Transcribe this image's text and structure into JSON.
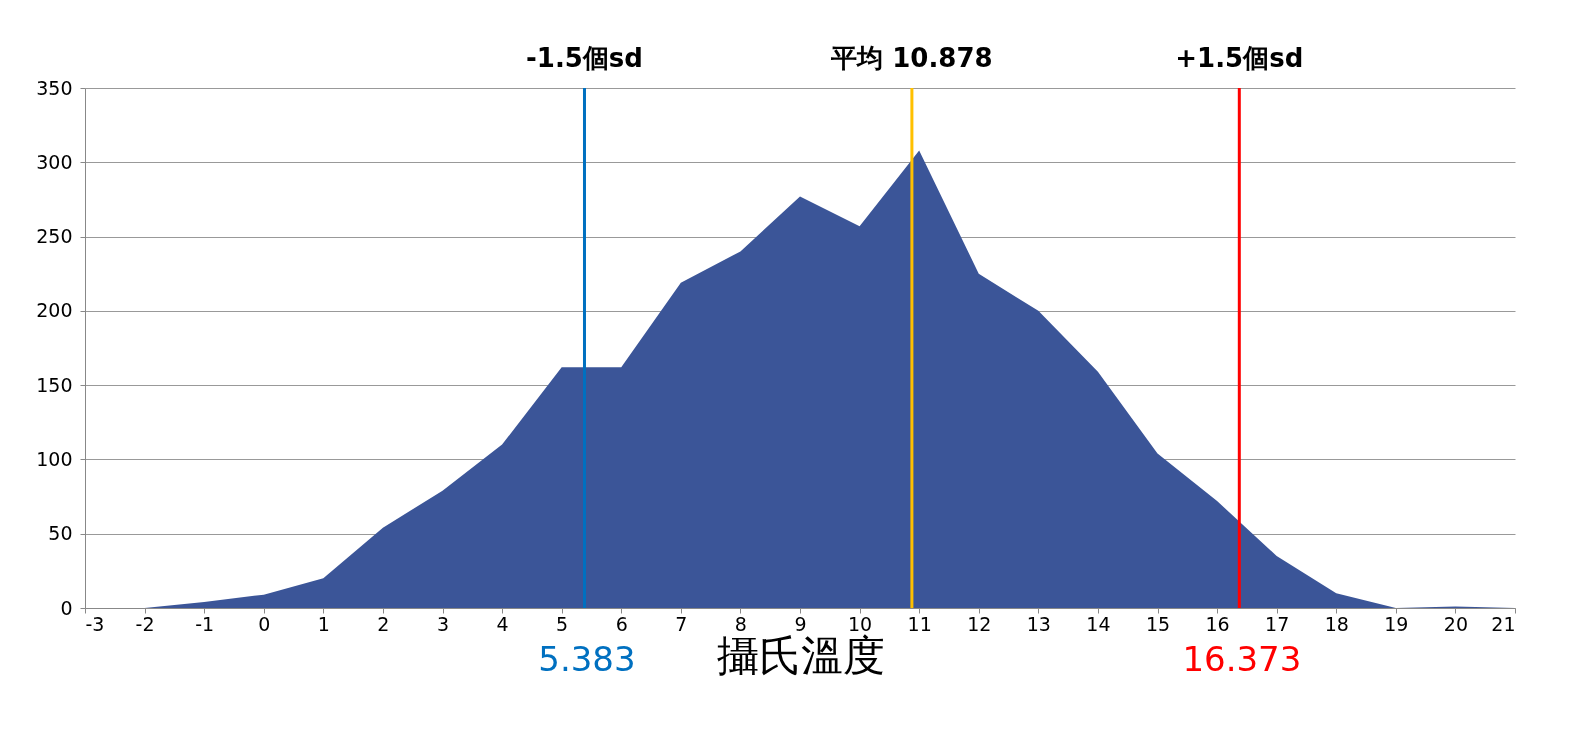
{
  "chart_data": {
    "type": "area",
    "xlabel": "攝氏溫度",
    "x": [
      -2,
      -1,
      0,
      1,
      2,
      3,
      4,
      5,
      6,
      7,
      8,
      9,
      10,
      11,
      12,
      13,
      14,
      15,
      16,
      17,
      18,
      19,
      20,
      21
    ],
    "series": [
      {
        "color": "#3b5598",
        "values": [
          0,
          4,
          9,
          20,
          54,
          79,
          110,
          162,
          162,
          219,
          240,
          277,
          257,
          308,
          225,
          200,
          159,
          104,
          72,
          35,
          10,
          0,
          1,
          0
        ]
      }
    ],
    "xlim": [
      -3,
      21
    ],
    "xticks": [
      -3,
      -2,
      -1,
      0,
      1,
      2,
      3,
      4,
      5,
      6,
      7,
      8,
      9,
      10,
      11,
      12,
      13,
      14,
      15,
      16,
      17,
      18,
      19,
      20,
      21
    ],
    "ylim": [
      0,
      350
    ],
    "yticks": [
      0,
      50,
      100,
      150,
      200,
      250,
      300,
      350
    ],
    "grid": "y",
    "ref_lines": [
      {
        "axis": "x",
        "value": 5.383,
        "label": "-1.5個sd",
        "color": "#0070c0"
      },
      {
        "axis": "x",
        "value": 10.878,
        "label": "平均 10.878",
        "color": "#ffc000"
      },
      {
        "axis": "x",
        "value": 16.373,
        "label": "+1.5個sd",
        "color": "#ff0000"
      }
    ],
    "annotations": [
      "5.383",
      "16.373"
    ]
  }
}
